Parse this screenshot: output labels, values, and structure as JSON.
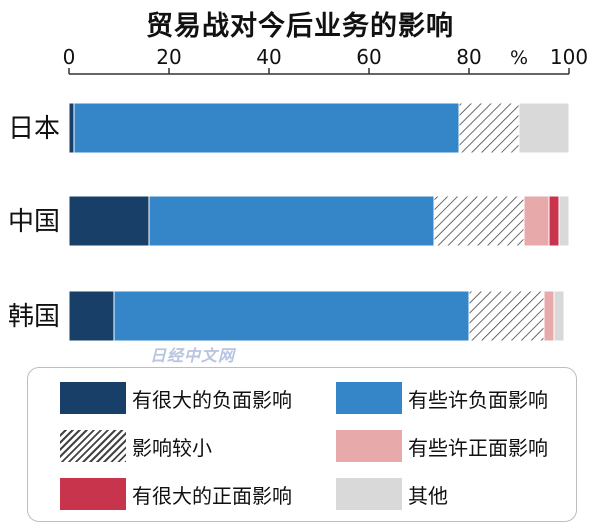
{
  "title": "贸易战对今后业务的影响",
  "watermark": "日经中文网",
  "chart_data": {
    "type": "bar",
    "orientation": "horizontal",
    "stacked": true,
    "title": "贸易战对今后业务的影响",
    "xlim": [
      0,
      100
    ],
    "x_ticks": [
      0,
      20,
      40,
      60,
      80,
      100
    ],
    "x_unit": "%",
    "categories": [
      "日本",
      "中国",
      "韩国"
    ],
    "series": [
      {
        "name": "有很大的负面影响",
        "color": "#173f67",
        "pattern": "solid",
        "values": [
          1,
          16,
          9
        ]
      },
      {
        "name": "有些许负面影响",
        "color": "#3486c9",
        "pattern": "solid",
        "values": [
          77,
          57,
          71
        ]
      },
      {
        "name": "影响较小",
        "color": "#ffffff",
        "pattern": "hatch",
        "values": [
          12,
          18,
          15
        ]
      },
      {
        "name": "有些许正面影响",
        "color": "#e8a9ab",
        "pattern": "solid",
        "values": [
          0,
          5,
          2
        ]
      },
      {
        "name": "有很大的正面影响",
        "color": "#c9344d",
        "pattern": "solid",
        "values": [
          0,
          2,
          0
        ]
      },
      {
        "name": "其他",
        "color": "#d9d9d9",
        "pattern": "solid",
        "values": [
          10,
          2,
          2
        ]
      }
    ],
    "legend_position": "bottom"
  }
}
